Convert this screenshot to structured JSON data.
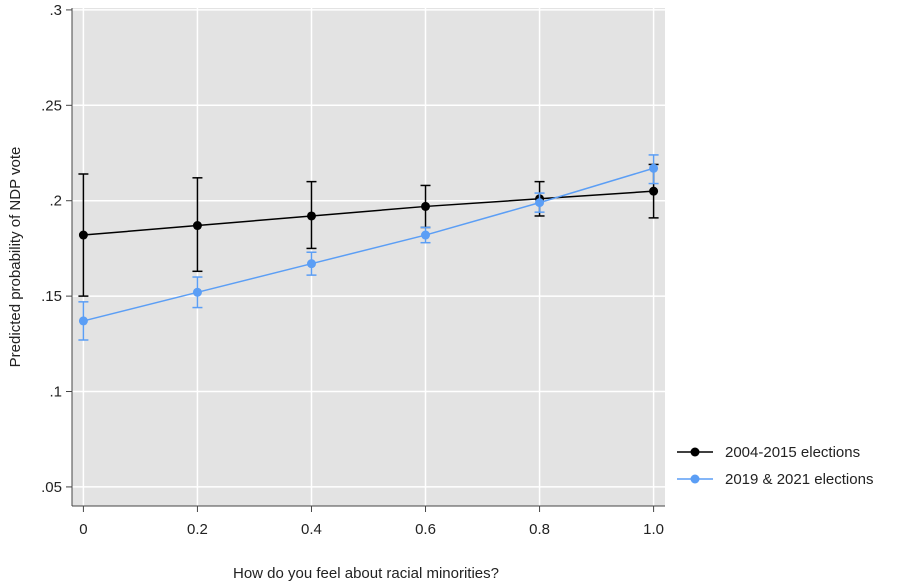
{
  "chart_data": {
    "type": "line",
    "xlabel": "How do you feel about racial minorities?",
    "ylabel": "Predicted probability of NDP vote",
    "x_ticks": [
      "0",
      "0.2",
      "0.4",
      "0.6",
      "0.8",
      "1.0"
    ],
    "y_ticks": [
      ".05",
      ".1",
      ".15",
      ".2",
      ".25",
      ".3"
    ],
    "xlim": [
      -0.02,
      1.02
    ],
    "ylim": [
      0.04,
      0.301
    ],
    "grid": true,
    "legend_position": "right",
    "series": [
      {
        "name": "2004-2015 elections",
        "color": "#000000",
        "x": [
          0,
          0.2,
          0.4,
          0.6,
          0.8,
          1.0
        ],
        "y": [
          0.182,
          0.187,
          0.192,
          0.197,
          0.201,
          0.205
        ],
        "ci_low": [
          0.15,
          0.163,
          0.175,
          0.186,
          0.192,
          0.191
        ],
        "ci_high": [
          0.214,
          0.212,
          0.21,
          0.208,
          0.21,
          0.219
        ]
      },
      {
        "name": "2019 & 2021 elections",
        "color": "#5b9ef5",
        "x": [
          0,
          0.2,
          0.4,
          0.6,
          0.8,
          1.0
        ],
        "y": [
          0.137,
          0.152,
          0.167,
          0.182,
          0.199,
          0.217
        ],
        "ci_low": [
          0.127,
          0.144,
          0.161,
          0.178,
          0.194,
          0.209
        ],
        "ci_high": [
          0.147,
          0.16,
          0.173,
          0.186,
          0.204,
          0.224
        ]
      }
    ]
  }
}
